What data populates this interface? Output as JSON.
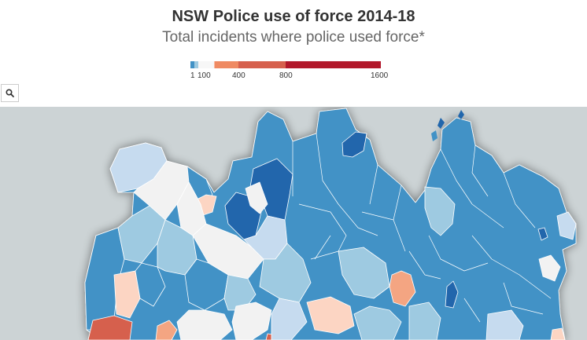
{
  "title": "NSW Police use of force 2014-18",
  "subtitle": "Total incidents where police used force*",
  "legend": {
    "colors": [
      "#4292c6",
      "#9ecae1",
      "#f7f7f7",
      "#fcbba1",
      "#ef8a62",
      "#d6604d",
      "#b2182b"
    ],
    "labels": [
      "1",
      "100",
      "400",
      "800",
      "1600"
    ]
  },
  "search_icon": "search-icon",
  "palette": {
    "ocean": "#ccd3d5",
    "dark_blue": "#2166ac",
    "mid_blue": "#4292c6",
    "light_blue": "#9ecae1",
    "pale_blue": "#c6dbef",
    "near_white": "#f2f2f2",
    "light_orange": "#fcd5c3",
    "orange": "#f4a582",
    "red": "#d6604d"
  }
}
